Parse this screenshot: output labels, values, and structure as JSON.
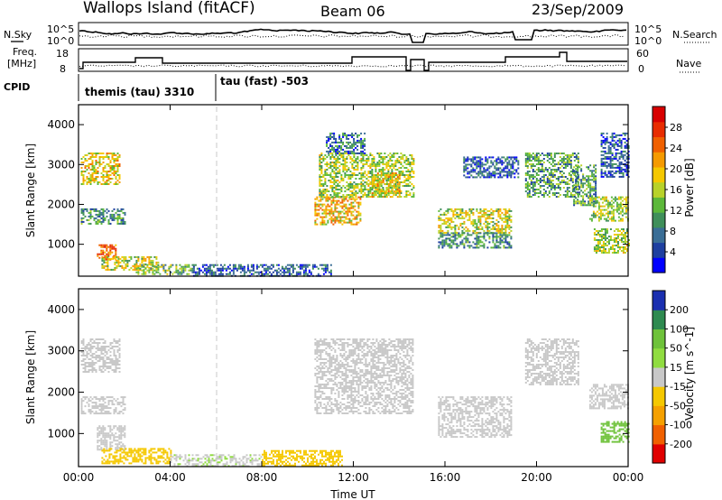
{
  "header": {
    "title": "Wallops Island (fitACF)",
    "beam": "Beam 06",
    "date": "23/Sep/2009"
  },
  "summary_panels": {
    "left_labels": {
      "nsky": "N.Sky",
      "freq_line1": "Freq.",
      "freq_line2": "[MHz]",
      "cpid": "CPID"
    },
    "right_labels": {
      "nsearch": "N.Search",
      "nave": "Nave"
    },
    "noise_ticks": [
      "10^5",
      "10^0"
    ],
    "noise_ticks_right": [
      "10^5",
      "10^0"
    ],
    "freq_ticks": [
      "18",
      "8"
    ],
    "nave_ticks": [
      "60",
      "0"
    ],
    "cpid_segments": [
      {
        "label": "themis (tau) 3310",
        "start_hour": 0,
        "end_hour": 6
      },
      {
        "label": "tau (fast) -503",
        "start_hour": 6,
        "end_hour": 24
      }
    ]
  },
  "chart_data": [
    {
      "type": "heatmap",
      "name": "power-panel",
      "xlabel": "",
      "ylabel": "Slant Range [km]",
      "x_ticks": [
        "00:00",
        "04:00",
        "08:00",
        "12:00",
        "16:00",
        "20:00",
        "00:00"
      ],
      "xlim_hours": [
        0,
        24
      ],
      "ylim": [
        200,
        4500
      ],
      "y_ticks": [
        1000,
        2000,
        3000,
        4000
      ],
      "colorbar": {
        "label": "Power [dB]",
        "ticks": [
          4,
          8,
          12,
          16,
          20,
          24,
          28
        ],
        "range": [
          0,
          32
        ],
        "colors": [
          "#0000ff",
          "#1e3fa0",
          "#3a6e96",
          "#3f8f5a",
          "#5cb83a",
          "#b8d22a",
          "#f5c800",
          "#f59a00",
          "#f06000",
          "#e82c00",
          "#d80000"
        ]
      },
      "regions": [
        {
          "hours": [
            0.1,
            1.8
          ],
          "range_km": [
            2500,
            3300
          ],
          "level": 20
        },
        {
          "hours": [
            0.1,
            2.0
          ],
          "range_km": [
            1500,
            1900
          ],
          "level": 10
        },
        {
          "hours": [
            0.8,
            1.6
          ],
          "range_km": [
            600,
            1000
          ],
          "level": 26
        },
        {
          "hours": [
            1.0,
            3.5
          ],
          "range_km": [
            350,
            700
          ],
          "level": 18
        },
        {
          "hours": [
            2.5,
            5.0
          ],
          "range_km": [
            250,
            500
          ],
          "level": 14
        },
        {
          "hours": [
            5.0,
            11.0
          ],
          "range_km": [
            220,
            500
          ],
          "level": 6
        },
        {
          "hours": [
            10.3,
            12.3
          ],
          "range_km": [
            1500,
            2200
          ],
          "level": 22
        },
        {
          "hours": [
            10.5,
            14.6
          ],
          "range_km": [
            2200,
            3300
          ],
          "level": 16
        },
        {
          "hours": [
            10.8,
            12.5
          ],
          "range_km": [
            3300,
            3800
          ],
          "level": 8
        },
        {
          "hours": [
            12.8,
            14.0
          ],
          "range_km": [
            2200,
            2800
          ],
          "level": 20
        },
        {
          "hours": [
            15.7,
            18.9
          ],
          "range_km": [
            1300,
            1900
          ],
          "level": 18
        },
        {
          "hours": [
            15.7,
            18.9
          ],
          "range_km": [
            900,
            1300
          ],
          "level": 10
        },
        {
          "hours": [
            16.8,
            19.2
          ],
          "range_km": [
            2700,
            3200
          ],
          "level": 6
        },
        {
          "hours": [
            19.5,
            21.8
          ],
          "range_km": [
            2200,
            3300
          ],
          "level": 12
        },
        {
          "hours": [
            21.6,
            22.6
          ],
          "range_km": [
            2000,
            3000
          ],
          "level": 12
        },
        {
          "hours": [
            22.3,
            24.0
          ],
          "range_km": [
            1600,
            2200
          ],
          "level": 16
        },
        {
          "hours": [
            22.5,
            24.0
          ],
          "range_km": [
            800,
            1400
          ],
          "level": 16
        },
        {
          "hours": [
            22.8,
            24.0
          ],
          "range_km": [
            2700,
            3800
          ],
          "level": 6
        }
      ]
    },
    {
      "type": "heatmap",
      "name": "velocity-panel",
      "xlabel": "Time UT",
      "ylabel": "Slant Range [km]",
      "x_ticks": [
        "00:00",
        "04:00",
        "08:00",
        "12:00",
        "16:00",
        "20:00",
        "00:00"
      ],
      "xlim_hours": [
        0,
        24
      ],
      "ylim": [
        200,
        4500
      ],
      "y_ticks": [
        1000,
        2000,
        3000,
        4000
      ],
      "colorbar": {
        "label": "Velocity [m s^-1]",
        "ticks": [
          200,
          100,
          50,
          15,
          -15,
          -50,
          -100,
          -200
        ],
        "colors": [
          "#1a2fb0",
          "#2e8a50",
          "#6ec23a",
          "#90dc40",
          "#c8c8c8",
          "#f5c800",
          "#f5a000",
          "#f06000",
          "#e00000"
        ]
      },
      "regions": [
        {
          "hours": [
            0.1,
            1.8
          ],
          "range_km": [
            2500,
            3300
          ],
          "level": 0
        },
        {
          "hours": [
            0.1,
            2.0
          ],
          "range_km": [
            1500,
            1900
          ],
          "level": 0
        },
        {
          "hours": [
            0.8,
            2.0
          ],
          "range_km": [
            600,
            1200
          ],
          "level": 0
        },
        {
          "hours": [
            1.0,
            4.0
          ],
          "range_km": [
            300,
            650
          ],
          "level": -30
        },
        {
          "hours": [
            4.0,
            8.0
          ],
          "range_km": [
            220,
            500
          ],
          "level": 10
        },
        {
          "hours": [
            8.0,
            11.5
          ],
          "range_km": [
            220,
            600
          ],
          "level": -40
        },
        {
          "hours": [
            10.3,
            14.6
          ],
          "range_km": [
            1500,
            3300
          ],
          "level": 0
        },
        {
          "hours": [
            15.7,
            18.9
          ],
          "range_km": [
            900,
            1900
          ],
          "level": 0
        },
        {
          "hours": [
            19.5,
            21.8
          ],
          "range_km": [
            2200,
            3300
          ],
          "level": 0
        },
        {
          "hours": [
            22.3,
            24.0
          ],
          "range_km": [
            1600,
            2200
          ],
          "level": 0
        },
        {
          "hours": [
            22.8,
            24.0
          ],
          "range_km": [
            800,
            1300
          ],
          "level": 60
        }
      ]
    }
  ]
}
